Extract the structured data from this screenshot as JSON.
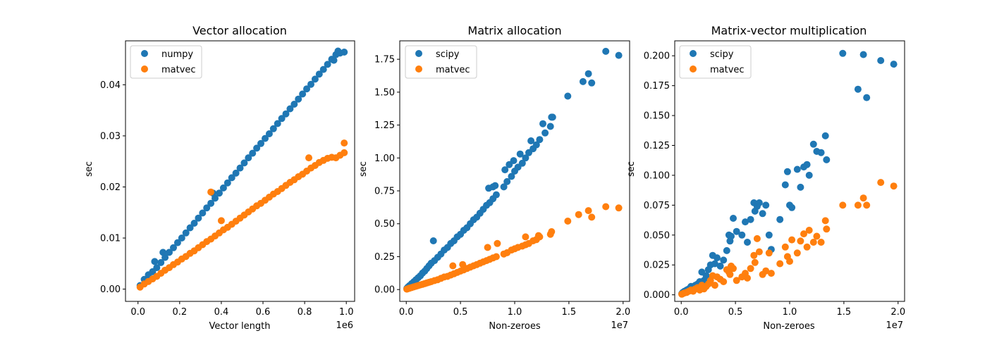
{
  "chart_data": [
    {
      "type": "scatter",
      "title": "Vector allocation",
      "xlabel": "Vector length",
      "ylabel": "sec",
      "x_offset_label": "1e6",
      "xlim": [
        -60000,
        1040000
      ],
      "ylim": [
        -0.0024,
        0.0486
      ],
      "xticks": [
        0,
        200000,
        400000,
        600000,
        800000,
        1000000
      ],
      "xtick_labels": [
        "0.0",
        "0.2",
        "0.4",
        "0.6",
        "0.8",
        "1.0"
      ],
      "yticks": [
        0,
        0.01,
        0.02,
        0.03,
        0.04
      ],
      "ytick_labels": [
        "0.00",
        "0.01",
        "0.02",
        "0.03",
        "0.04"
      ],
      "legend_loc": "upper-left",
      "grid": false,
      "series": [
        {
          "name": "numpy",
          "color": "#1f77b4",
          "x": [
            10000,
            30000,
            50000,
            70000,
            90000,
            110000,
            130000,
            150000,
            170000,
            190000,
            210000,
            230000,
            250000,
            270000,
            290000,
            310000,
            330000,
            350000,
            370000,
            390000,
            410000,
            430000,
            450000,
            470000,
            490000,
            510000,
            530000,
            550000,
            570000,
            590000,
            610000,
            630000,
            650000,
            670000,
            690000,
            710000,
            730000,
            750000,
            770000,
            790000,
            810000,
            830000,
            850000,
            870000,
            890000,
            910000,
            930000,
            950000,
            970000,
            990000,
            80000,
            120000,
            360000,
            940000,
            960000
          ],
          "y": [
            0.0007,
            0.0019,
            0.0028,
            0.0034,
            0.0042,
            0.0052,
            0.0062,
            0.0072,
            0.0081,
            0.0091,
            0.01,
            0.011,
            0.012,
            0.0129,
            0.0139,
            0.0149,
            0.0159,
            0.0168,
            0.0178,
            0.0188,
            0.0198,
            0.0208,
            0.0218,
            0.0227,
            0.0237,
            0.0247,
            0.0257,
            0.0266,
            0.0276,
            0.0285,
            0.0295,
            0.0304,
            0.0314,
            0.0324,
            0.0334,
            0.0343,
            0.0353,
            0.0362,
            0.0372,
            0.0382,
            0.0392,
            0.0401,
            0.0411,
            0.0421,
            0.043,
            0.044,
            0.045,
            0.0459,
            0.0462,
            0.0464,
            0.0054,
            0.0072,
            0.0188,
            0.0448,
            0.0466
          ]
        },
        {
          "name": "matvec",
          "color": "#ff7f0e",
          "x": [
            10000,
            30000,
            50000,
            70000,
            90000,
            110000,
            130000,
            150000,
            170000,
            190000,
            210000,
            230000,
            250000,
            270000,
            290000,
            310000,
            330000,
            350000,
            370000,
            390000,
            410000,
            430000,
            450000,
            470000,
            490000,
            510000,
            530000,
            550000,
            570000,
            590000,
            610000,
            630000,
            650000,
            670000,
            690000,
            710000,
            730000,
            750000,
            770000,
            790000,
            810000,
            830000,
            850000,
            870000,
            890000,
            910000,
            930000,
            950000,
            970000,
            990000,
            350000,
            400000,
            820000,
            990000
          ],
          "y": [
            0.0004,
            0.001,
            0.0015,
            0.002,
            0.0025,
            0.0031,
            0.0037,
            0.0042,
            0.0048,
            0.0053,
            0.0059,
            0.0064,
            0.007,
            0.0075,
            0.0081,
            0.0087,
            0.0093,
            0.0098,
            0.0104,
            0.011,
            0.0116,
            0.0121,
            0.0127,
            0.0133,
            0.0139,
            0.0145,
            0.0151,
            0.0157,
            0.0163,
            0.0168,
            0.0174,
            0.018,
            0.0186,
            0.0191,
            0.0197,
            0.0203,
            0.0209,
            0.0214,
            0.022,
            0.0225,
            0.0231,
            0.0237,
            0.0242,
            0.0248,
            0.0252,
            0.0256,
            0.0258,
            0.0257,
            0.0262,
            0.0267,
            0.019,
            0.0134,
            0.0257,
            0.0286
          ]
        }
      ]
    },
    {
      "type": "scatter",
      "title": "Matrix allocation",
      "xlabel": "Non-zeroes",
      "ylabel": "sec",
      "x_offset_label": "1e7",
      "xlim": [
        -600000,
        20600000
      ],
      "ylim": [
        -0.09,
        1.89
      ],
      "xticks": [
        0,
        5000000,
        10000000,
        15000000,
        20000000
      ],
      "xtick_labels": [
        "0.0",
        "0.5",
        "1.0",
        "1.5",
        "2.0"
      ],
      "yticks": [
        0,
        0.25,
        0.5,
        0.75,
        1.0,
        1.25,
        1.5,
        1.75
      ],
      "ytick_labels": [
        "0.00",
        "0.25",
        "0.50",
        "0.75",
        "1.00",
        "1.25",
        "1.50",
        "1.75"
      ],
      "legend_loc": "upper-left",
      "grid": false,
      "series": [
        {
          "name": "scipy",
          "color": "#1f77b4",
          "x": [
            50000,
            150000,
            300000,
            500000,
            700000,
            900000,
            1100000,
            1300000,
            1500000,
            1700000,
            1900000,
            2100000,
            2300000,
            2600000,
            2900000,
            3200000,
            3500000,
            3800000,
            4100000,
            4400000,
            4700000,
            5000000,
            5300000,
            5600000,
            5900000,
            6200000,
            6500000,
            6800000,
            7100000,
            7400000,
            7700000,
            8000000,
            8300000,
            9000000,
            9300000,
            9700000,
            10000000,
            10300000,
            10700000,
            11000000,
            11300000,
            11700000,
            12000000,
            12300000,
            12800000,
            13300000,
            13500000,
            14900000,
            16300000,
            16800000,
            17100000,
            18400000,
            19600000,
            2500000
          ],
          "y": [
            0.008,
            0.018,
            0.03,
            0.045,
            0.06,
            0.075,
            0.09,
            0.105,
            0.125,
            0.14,
            0.16,
            0.18,
            0.2,
            0.22,
            0.245,
            0.27,
            0.3,
            0.32,
            0.35,
            0.37,
            0.4,
            0.42,
            0.45,
            0.47,
            0.5,
            0.53,
            0.55,
            0.58,
            0.61,
            0.64,
            0.66,
            0.69,
            0.72,
            0.78,
            0.82,
            0.86,
            0.9,
            0.93,
            0.96,
            1.0,
            1.04,
            1.07,
            1.1,
            1.14,
            1.19,
            1.24,
            1.31,
            1.47,
            1.58,
            1.64,
            1.57,
            1.81,
            1.78,
            0.37
          ],
          "extra_x": [
            7600000,
            8000000,
            8200000,
            9100000,
            9500000,
            9900000,
            10500000,
            11500000,
            12600000,
            13400000
          ],
          "extra_y": [
            0.77,
            0.78,
            0.79,
            0.91,
            0.95,
            0.98,
            1.03,
            1.13,
            1.26,
            1.31
          ]
        },
        {
          "name": "matvec",
          "color": "#ff7f0e",
          "x": [
            50000,
            150000,
            300000,
            500000,
            700000,
            900000,
            1100000,
            1300000,
            1500000,
            1700000,
            1900000,
            2100000,
            2300000,
            2600000,
            2900000,
            3200000,
            3500000,
            3800000,
            4100000,
            4400000,
            4700000,
            5000000,
            5300000,
            5600000,
            5900000,
            6200000,
            6500000,
            6800000,
            7100000,
            7400000,
            7700000,
            8000000,
            8300000,
            9000000,
            9300000,
            9700000,
            10000000,
            10300000,
            10700000,
            11000000,
            11300000,
            11700000,
            12000000,
            12300000,
            13400000,
            14900000,
            15900000,
            16800000,
            17100000,
            18400000,
            19600000
          ],
          "y": [
            0.003,
            0.006,
            0.01,
            0.015,
            0.02,
            0.025,
            0.03,
            0.035,
            0.04,
            0.045,
            0.05,
            0.055,
            0.06,
            0.068,
            0.075,
            0.085,
            0.095,
            0.1,
            0.11,
            0.12,
            0.13,
            0.14,
            0.15,
            0.16,
            0.17,
            0.18,
            0.19,
            0.2,
            0.21,
            0.22,
            0.23,
            0.24,
            0.25,
            0.27,
            0.28,
            0.3,
            0.31,
            0.32,
            0.33,
            0.34,
            0.35,
            0.37,
            0.38,
            0.4,
            0.44,
            0.52,
            0.57,
            0.6,
            0.55,
            0.63,
            0.62
          ],
          "extra_x": [
            4300000,
            5200000,
            7500000,
            8400000,
            11000000,
            12200000,
            13300000
          ],
          "extra_y": [
            0.18,
            0.19,
            0.32,
            0.35,
            0.4,
            0.41,
            0.42
          ]
        }
      ]
    },
    {
      "type": "scatter",
      "title": "Matrix-vector multiplication",
      "xlabel": "Non-zeroes",
      "ylabel": "sec",
      "x_offset_label": "1e7",
      "xlim": [
        -600000,
        20600000
      ],
      "ylim": [
        -0.0055,
        0.2125
      ],
      "xticks": [
        0,
        5000000,
        10000000,
        15000000,
        20000000
      ],
      "xtick_labels": [
        "0.0",
        "0.5",
        "1.0",
        "1.5",
        "2.0"
      ],
      "yticks": [
        0,
        0.025,
        0.05,
        0.075,
        0.1,
        0.125,
        0.15,
        0.175,
        0.2
      ],
      "ytick_labels": [
        "0.000",
        "0.025",
        "0.050",
        "0.075",
        "0.100",
        "0.125",
        "0.150",
        "0.175",
        "0.200"
      ],
      "legend_loc": "upper-left",
      "grid": false,
      "series": [
        {
          "name": "scipy",
          "color": "#1f77b4",
          "x": [
            50000,
            150000,
            300000,
            500000,
            700000,
            900000,
            1100000,
            1300000,
            1500000,
            1700000,
            1900000,
            2100000,
            2300000,
            2500000,
            2700000,
            2900000,
            3100000,
            3300000,
            3600000,
            3900000,
            4200000,
            4400000,
            4500000,
            4600000,
            4800000,
            5100000,
            5600000,
            5900000,
            6100000,
            6400000,
            6700000,
            6800000,
            7000000,
            7200000,
            7500000,
            7800000,
            8100000,
            8300000,
            9100000,
            9600000,
            9800000,
            10000000,
            10200000,
            10700000,
            11000000,
            11300000,
            11600000,
            11800000,
            12200000,
            12500000,
            12900000,
            13300000,
            13400000,
            14900000,
            16300000,
            16800000,
            17100000,
            18400000,
            19600000
          ],
          "y": [
            0.001,
            0.002,
            0.003,
            0.004,
            0.005,
            0.007,
            0.006,
            0.008,
            0.009,
            0.011,
            0.019,
            0.012,
            0.016,
            0.021,
            0.025,
            0.033,
            0.026,
            0.031,
            0.024,
            0.029,
            0.037,
            0.05,
            0.045,
            0.049,
            0.064,
            0.053,
            0.05,
            0.061,
            0.044,
            0.063,
            0.077,
            0.07,
            0.074,
            0.077,
            0.068,
            0.075,
            0.05,
            0.038,
            0.063,
            0.092,
            0.103,
            0.075,
            0.073,
            0.105,
            0.09,
            0.107,
            0.109,
            0.1,
            0.126,
            0.12,
            0.119,
            0.133,
            0.113,
            0.202,
            0.172,
            0.201,
            0.165,
            0.196,
            0.193
          ],
          "extra_x": [],
          "extra_y": []
        },
        {
          "name": "matvec",
          "color": "#ff7f0e",
          "x": [
            50000,
            150000,
            300000,
            500000,
            700000,
            900000,
            1100000,
            1300000,
            1500000,
            1700000,
            1900000,
            2100000,
            2300000,
            2500000,
            2700000,
            2900000,
            3100000,
            3300000,
            3600000,
            3900000,
            4200000,
            4400000,
            4500000,
            4600000,
            4800000,
            5100000,
            5600000,
            5900000,
            6100000,
            6400000,
            6700000,
            6800000,
            7000000,
            7200000,
            7500000,
            7800000,
            8100000,
            8300000,
            9100000,
            9600000,
            9800000,
            10000000,
            10200000,
            10700000,
            11000000,
            11300000,
            11600000,
            11800000,
            12200000,
            12500000,
            12900000,
            13300000,
            13400000,
            14900000,
            16300000,
            16800000,
            17100000,
            18400000,
            19600000
          ],
          "y": [
            0.0005,
            0.001,
            0.0015,
            0.002,
            0.003,
            0.004,
            0.003,
            0.005,
            0.006,
            0.004,
            0.008,
            0.005,
            0.007,
            0.009,
            0.012,
            0.016,
            0.008,
            0.015,
            0.013,
            0.011,
            0.021,
            0.019,
            0.017,
            0.024,
            0.022,
            0.012,
            0.015,
            0.018,
            0.014,
            0.022,
            0.033,
            0.027,
            0.047,
            0.036,
            0.017,
            0.02,
            0.035,
            0.018,
            0.026,
            0.04,
            0.032,
            0.028,
            0.046,
            0.035,
            0.045,
            0.051,
            0.04,
            0.054,
            0.044,
            0.049,
            0.044,
            0.062,
            0.055,
            0.075,
            0.075,
            0.081,
            0.075,
            0.094,
            0.091
          ],
          "extra_x": [],
          "extra_y": []
        }
      ]
    }
  ]
}
